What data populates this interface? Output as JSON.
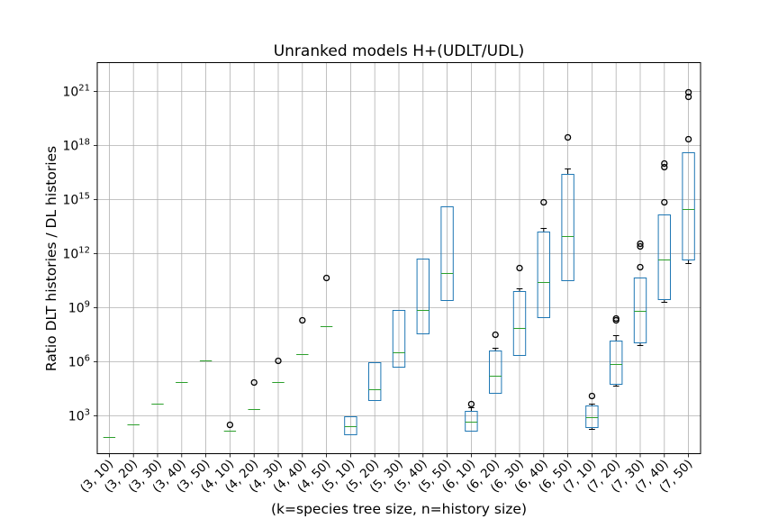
{
  "chart_data": {
    "type": "box",
    "title": "Unranked models H+(UDLT/UDL)",
    "xlabel": "(k=species tree size, n=history size)",
    "ylabel": "Ratio DLT histories / DL histories",
    "yscale": "log",
    "ylim_log10": [
      0.9,
      22.6
    ],
    "yticks": [
      {
        "exp": 3,
        "base": "10",
        "sup": "3"
      },
      {
        "exp": 6,
        "base": "10",
        "sup": "6"
      },
      {
        "exp": 9,
        "base": "10",
        "sup": "9"
      },
      {
        "exp": 12,
        "base": "10",
        "sup": "12"
      },
      {
        "exp": 15,
        "base": "10",
        "sup": "15"
      },
      {
        "exp": 18,
        "base": "10",
        "sup": "18"
      },
      {
        "exp": 21,
        "base": "10",
        "sup": "21"
      }
    ],
    "grid": true,
    "colors": {
      "box": "#1f77b4",
      "median": "#2ca02c",
      "whisker": "#000000",
      "grid": "#b0b0b0"
    },
    "value_units": "log10 of ratio",
    "categories": [
      "(3, 10)",
      "(3, 20)",
      "(3, 30)",
      "(3, 40)",
      "(3, 50)",
      "(4, 10)",
      "(4, 20)",
      "(4, 30)",
      "(4, 40)",
      "(4, 50)",
      "(5, 10)",
      "(5, 20)",
      "(5, 30)",
      "(5, 40)",
      "(5, 50)",
      "(6, 10)",
      "(6, 20)",
      "(6, 30)",
      "(6, 40)",
      "(6, 50)",
      "(7, 10)",
      "(7, 20)",
      "(7, 30)",
      "(7, 40)",
      "(7, 50)"
    ],
    "boxes": [
      {
        "wlo": 1.8,
        "q1": 1.8,
        "med": 1.8,
        "q3": 1.8,
        "whi": 1.8,
        "fliers": []
      },
      {
        "wlo": 2.5,
        "q1": 2.5,
        "med": 2.5,
        "q3": 2.5,
        "whi": 2.5,
        "fliers": []
      },
      {
        "wlo": 3.65,
        "q1": 3.65,
        "med": 3.65,
        "q3": 3.65,
        "whi": 3.65,
        "fliers": []
      },
      {
        "wlo": 4.85,
        "q1": 4.85,
        "med": 4.85,
        "q3": 4.85,
        "whi": 4.85,
        "fliers": []
      },
      {
        "wlo": 6.05,
        "q1": 6.05,
        "med": 6.05,
        "q3": 6.05,
        "whi": 6.05,
        "fliers": []
      },
      {
        "wlo": 2.15,
        "q1": 2.15,
        "med": 2.15,
        "q3": 2.15,
        "whi": 2.15,
        "fliers": [
          2.5
        ]
      },
      {
        "wlo": 3.35,
        "q1": 3.35,
        "med": 3.35,
        "q3": 3.35,
        "whi": 3.35,
        "fliers": [
          4.85
        ]
      },
      {
        "wlo": 4.85,
        "q1": 4.85,
        "med": 4.85,
        "q3": 4.85,
        "whi": 4.85,
        "fliers": [
          6.05
        ]
      },
      {
        "wlo": 6.4,
        "q1": 6.4,
        "med": 6.4,
        "q3": 6.4,
        "whi": 6.4,
        "fliers": [
          8.3
        ]
      },
      {
        "wlo": 7.95,
        "q1": 7.95,
        "med": 7.95,
        "q3": 7.95,
        "whi": 7.95,
        "fliers": [
          10.65
        ]
      },
      {
        "wlo": 1.95,
        "q1": 1.95,
        "med": 2.4,
        "q3": 2.95,
        "whi": 2.95,
        "fliers": []
      },
      {
        "wlo": 3.85,
        "q1": 3.85,
        "med": 4.45,
        "q3": 5.95,
        "whi": 5.95,
        "fliers": []
      },
      {
        "wlo": 5.7,
        "q1": 5.7,
        "med": 6.5,
        "q3": 8.85,
        "whi": 8.85,
        "fliers": []
      },
      {
        "wlo": 7.55,
        "q1": 7.55,
        "med": 8.85,
        "q3": 11.7,
        "whi": 11.7,
        "fliers": []
      },
      {
        "wlo": 9.4,
        "q1": 9.4,
        "med": 10.9,
        "q3": 14.6,
        "whi": 14.6,
        "fliers": []
      },
      {
        "wlo": 2.15,
        "q1": 2.15,
        "med": 2.65,
        "q3": 3.25,
        "whi": 3.45,
        "fliers": [
          3.65
        ]
      },
      {
        "wlo": 4.25,
        "q1": 4.25,
        "med": 5.2,
        "q3": 6.6,
        "whi": 6.75,
        "fliers": [
          7.5
        ]
      },
      {
        "wlo": 6.35,
        "q1": 6.35,
        "med": 7.85,
        "q3": 9.9,
        "whi": 10.05,
        "fliers": [
          11.2
        ]
      },
      {
        "wlo": 8.45,
        "q1": 8.45,
        "med": 10.4,
        "q3": 13.2,
        "whi": 13.4,
        "fliers": [
          14.85
        ]
      },
      {
        "wlo": 10.5,
        "q1": 10.5,
        "med": 12.95,
        "q3": 16.4,
        "whi": 16.7,
        "fliers": [
          18.45
        ]
      },
      {
        "wlo": 2.25,
        "q1": 2.35,
        "med": 2.9,
        "q3": 3.55,
        "whi": 3.65,
        "fliers": [
          4.1
        ]
      },
      {
        "wlo": 4.65,
        "q1": 4.75,
        "med": 5.85,
        "q3": 7.15,
        "whi": 7.45,
        "fliers": [
          8.3,
          8.4
        ]
      },
      {
        "wlo": 6.9,
        "q1": 7.05,
        "med": 8.8,
        "q3": 10.65,
        "whi": 10.65,
        "fliers": [
          11.25,
          12.4,
          12.55
        ]
      },
      {
        "wlo": 9.3,
        "q1": 9.45,
        "med": 11.65,
        "q3": 14.15,
        "whi": 14.15,
        "fliers": [
          14.85,
          16.8,
          17.0
        ]
      },
      {
        "wlo": 11.45,
        "q1": 11.65,
        "med": 14.45,
        "q3": 17.6,
        "whi": 17.6,
        "fliers": [
          18.35,
          20.7,
          20.95
        ]
      }
    ]
  }
}
